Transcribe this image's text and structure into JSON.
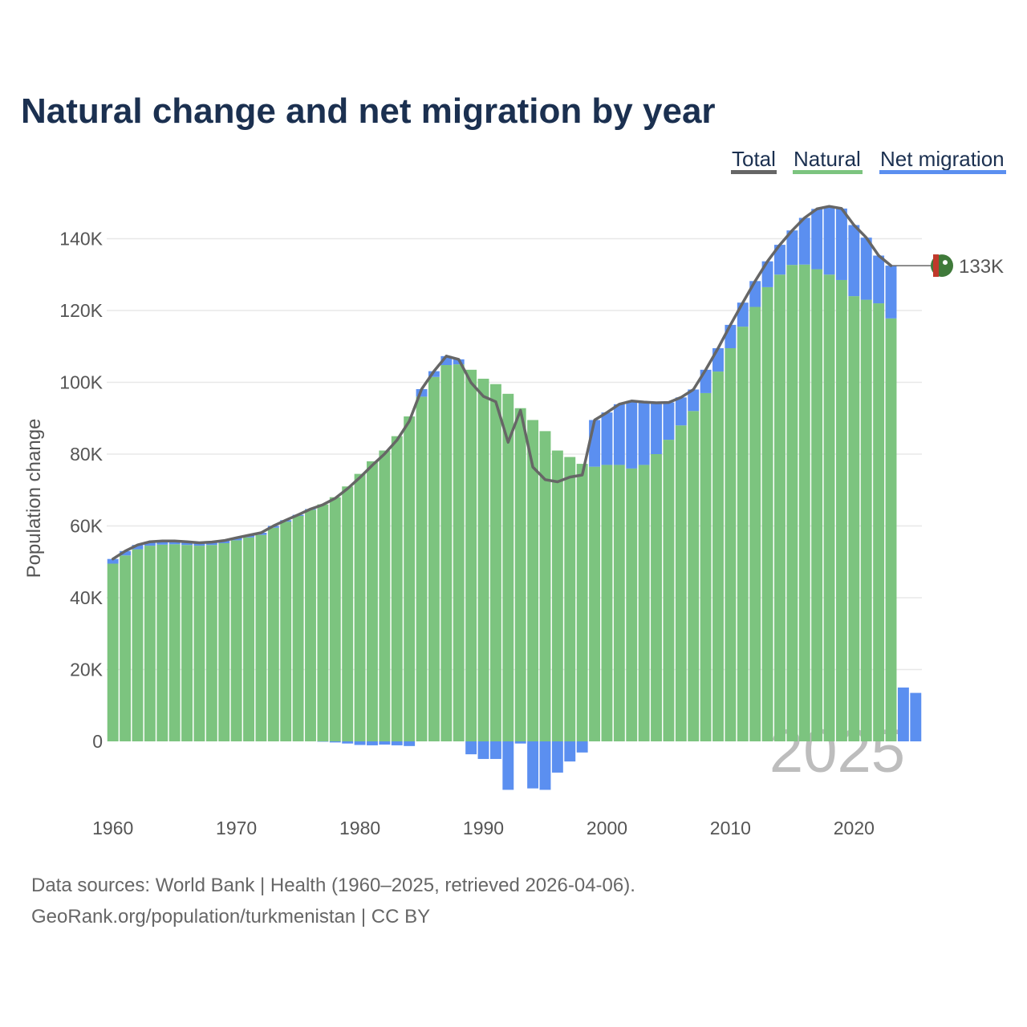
{
  "chart_data": {
    "type": "bar",
    "title": "Natural change and net migration by year",
    "ylabel": "Population change",
    "xlabel": "",
    "ylim": [
      -15000,
      152000
    ],
    "xlim": [
      1959.5,
      2025.5
    ],
    "yticks": [
      0,
      20000,
      40000,
      60000,
      80000,
      100000,
      120000,
      140000
    ],
    "ytick_labels": [
      "0",
      "20K",
      "40K",
      "60K",
      "80K",
      "100K",
      "120K",
      "140K"
    ],
    "xticks": [
      1960,
      1970,
      1980,
      1990,
      2000,
      2010,
      2020
    ],
    "xtick_labels": [
      "1960",
      "1970",
      "1980",
      "1990",
      "2000",
      "2010",
      "2020"
    ],
    "legend": [
      {
        "name": "Total",
        "color": "#666666"
      },
      {
        "name": "Natural",
        "color": "#7cc47f"
      },
      {
        "name": "Net migration",
        "color": "#5b8ff0"
      }
    ],
    "legend_position": "top-right",
    "grid": true,
    "end_label": "133K",
    "watermark_year": "2025",
    "years": [
      1960,
      1961,
      1962,
      1963,
      1964,
      1965,
      1966,
      1967,
      1968,
      1969,
      1970,
      1971,
      1972,
      1973,
      1974,
      1975,
      1976,
      1977,
      1978,
      1979,
      1980,
      1981,
      1982,
      1983,
      1984,
      1985,
      1986,
      1987,
      1988,
      1989,
      1990,
      1991,
      1992,
      1993,
      1994,
      1995,
      1996,
      1997,
      1998,
      1999,
      2000,
      2001,
      2002,
      2003,
      2004,
      2005,
      2006,
      2007,
      2008,
      2009,
      2010,
      2011,
      2012,
      2013,
      2014,
      2015,
      2016,
      2017,
      2018,
      2019,
      2020,
      2021,
      2022,
      2023,
      2024,
      2025
    ],
    "series": [
      {
        "name": "Natural",
        "color": "#7cc47f",
        "values": [
          49500,
          51800,
          53500,
          54500,
          54800,
          54900,
          54700,
          54500,
          54700,
          55200,
          56000,
          56800,
          57500,
          59500,
          61200,
          62800,
          64500,
          66000,
          68000,
          71000,
          74500,
          78000,
          81000,
          85000,
          90500,
          96000,
          101500,
          104800,
          105000,
          103500,
          101000,
          99500,
          96800,
          92800,
          89500,
          86400,
          81000,
          79200,
          77300,
          76500,
          77000,
          77000,
          76000,
          77000,
          80000,
          84000,
          88000,
          92000,
          97000,
          103000,
          109500,
          115500,
          121000,
          126500,
          130000,
          132700,
          132800,
          131500,
          130000,
          128500,
          124000,
          123000,
          122000,
          117800,
          0,
          0
        ]
      },
      {
        "name": "Net migration",
        "color": "#5b8ff0",
        "values": [
          1300,
          1200,
          1200,
          1100,
          1000,
          900,
          900,
          800,
          800,
          700,
          700,
          600,
          600,
          500,
          400,
          300,
          200,
          -100,
          -300,
          -600,
          -1000,
          -1100,
          -900,
          -1100,
          -1300,
          2100,
          1600,
          2500,
          1400,
          -3600,
          -4900,
          -4900,
          -13500,
          -600,
          -13100,
          -13500,
          -8700,
          -5600,
          -3100,
          13000,
          14600,
          16900,
          18800,
          17500,
          14300,
          10400,
          7800,
          6000,
          6500,
          6500,
          6500,
          6700,
          7200,
          7200,
          8300,
          9600,
          13000,
          16800,
          19000,
          19900,
          19800,
          17300,
          13300,
          14700,
          15000,
          13500
        ]
      },
      {
        "name": "Total",
        "color": "#666666",
        "values": [
          50800,
          53000,
          54700,
          55600,
          55800,
          55800,
          55600,
          55300,
          55500,
          55900,
          56700,
          57400,
          58100,
          60000,
          61600,
          63100,
          64700,
          65900,
          67700,
          70400,
          73500,
          76900,
          80100,
          83900,
          89200,
          98100,
          103100,
          107300,
          106400,
          99900,
          96100,
          94600,
          83300,
          92200,
          76400,
          72900,
          72300,
          73600,
          74200,
          89500,
          91600,
          93900,
          94800,
          94500,
          94300,
          94400,
          95800,
          98000,
          103500,
          109500,
          116000,
          122200,
          128200,
          133700,
          138300,
          142300,
          145800,
          148300,
          149000,
          148400,
          143800,
          140300,
          135300,
          132500
        ]
      }
    ],
    "footer": [
      "Data sources: World Bank | Health (1960–2025, retrieved 2026-04-06).",
      "GeoRank.org/population/turkmenistan | CC BY"
    ]
  },
  "colors": {
    "title": "#1b3050",
    "natural": "#7cc47f",
    "migration": "#5b8ff0",
    "total": "#666666",
    "grid": "#e8e8e8"
  }
}
